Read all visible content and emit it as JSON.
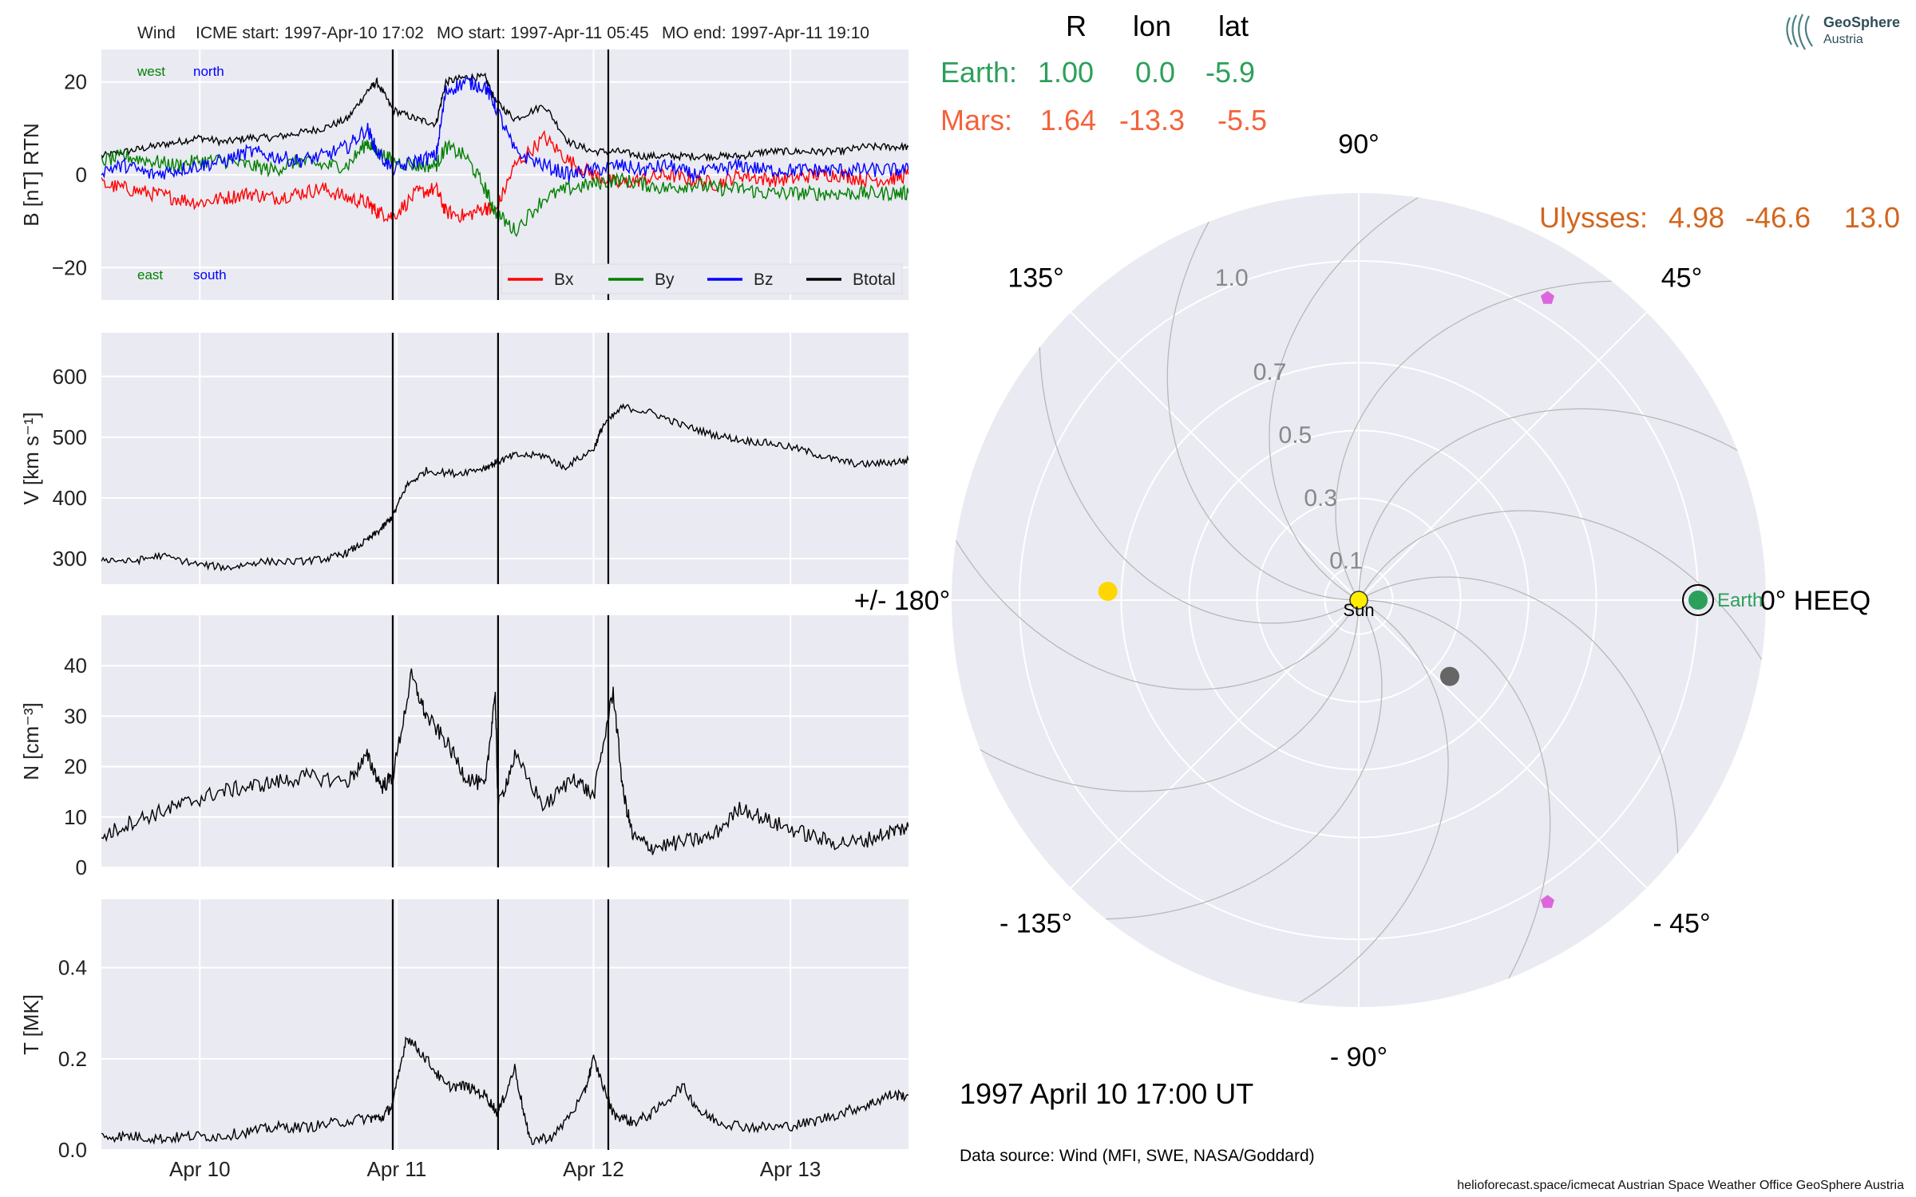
{
  "title": {
    "spacecraft": "Wind",
    "icme_start": "ICME start: 1997-Apr-10 17:02",
    "mo_start": "MO start: 1997-Apr-11 05:45",
    "mo_end": "MO end: 1997-Apr-11 19:10"
  },
  "logo": {
    "name": "GeoSphere",
    "sub": "Austria"
  },
  "positions": {
    "headers": [
      "R",
      "lon",
      "lat"
    ],
    "rows": [
      {
        "name": "Earth:",
        "R": "1.00",
        "lon": "0.0",
        "lat": "-5.9",
        "color": "#2ca05a"
      },
      {
        "name": "Mars:",
        "R": "1.64",
        "lon": "-13.3",
        "lat": "-5.5",
        "color": "#f4623a"
      },
      {
        "name": "Ulysses:",
        "R": "4.98",
        "lon": "-46.6",
        "lat": "13.0",
        "color": "#d2661e"
      }
    ]
  },
  "date_label": "1997 April 10  17:00 UT",
  "data_source": "Data source: Wind (MFI, SWE, NASA/Goddard)",
  "footer": "helioforecast.space/icmecat   Austrian Space Weather Office   GeoSphere Austria",
  "chart_data": [
    {
      "type": "line",
      "panel": "B",
      "ylabel": "B [nT] RTN",
      "ylim": [
        -27,
        27
      ],
      "yticks": [
        20,
        0,
        -20
      ],
      "ytick_labels": [
        "20",
        "0",
        "−20"
      ],
      "corner_labels": {
        "west": "west",
        "north": "north",
        "east": "east",
        "south": "south"
      },
      "legend": [
        "Bx",
        "By",
        "Bz",
        "Btotal"
      ],
      "colors": {
        "Bx": "#ff0000",
        "By": "#008000",
        "Bz": "#0000ff",
        "Btotal": "#000000"
      },
      "x": [
        0,
        0.25,
        0.5,
        0.75,
        1.0,
        1.25,
        1.5,
        1.75,
        2.0,
        2.25,
        2.5,
        2.7,
        2.8,
        2.96,
        3.2,
        3.4,
        3.5,
        3.7,
        3.9,
        4.0,
        4.2,
        4.5,
        4.75,
        5.0,
        5.25,
        5.5,
        5.75,
        6.0,
        6.25,
        6.5,
        6.75,
        7.0,
        7.25,
        7.5,
        7.75,
        8.0,
        8.2
      ],
      "series": [
        {
          "name": "Btotal",
          "values": [
            4,
            5,
            6,
            7,
            8,
            7,
            8,
            8,
            9,
            10,
            12,
            18,
            20,
            14,
            12,
            11,
            20,
            21,
            21,
            16,
            12,
            15,
            7,
            5,
            5,
            4,
            4,
            4,
            4,
            4,
            5,
            5,
            5,
            5,
            6,
            6,
            6
          ]
        },
        {
          "name": "Bx",
          "values": [
            -2,
            -3,
            -4,
            -5,
            -6,
            -5,
            -4,
            -5,
            -4,
            -3,
            -5,
            -6,
            -8,
            -9,
            -4,
            -3,
            -8,
            -9,
            -7,
            -8,
            2,
            8,
            3,
            0,
            -2,
            -1,
            0,
            -1,
            -2,
            0,
            -1,
            -1,
            0,
            0,
            -1,
            -1,
            0
          ]
        },
        {
          "name": "By",
          "values": [
            3,
            4,
            3,
            2,
            3,
            3,
            2,
            1,
            3,
            2,
            2,
            7,
            5,
            3,
            2,
            2,
            6,
            4,
            -3,
            -8,
            -12,
            -5,
            -3,
            -2,
            -1,
            -2,
            -3,
            -2,
            -3,
            -3,
            -4,
            -4,
            -4,
            -4,
            -4,
            -4,
            -4
          ]
        },
        {
          "name": "Bz",
          "values": [
            1,
            2,
            0,
            1,
            2,
            3,
            5,
            4,
            3,
            4,
            6,
            10,
            5,
            1,
            3,
            4,
            18,
            20,
            19,
            15,
            5,
            2,
            0,
            1,
            2,
            1,
            2,
            0,
            1,
            2,
            1,
            1,
            1,
            1,
            1,
            1,
            1
          ]
        }
      ]
    },
    {
      "type": "line",
      "panel": "V",
      "ylabel": "V [km s⁻¹]",
      "ylim": [
        258,
        672
      ],
      "yticks": [
        600,
        500,
        400,
        300
      ],
      "x": [
        0,
        0.3,
        0.6,
        1.0,
        1.3,
        1.6,
        2.0,
        2.3,
        2.5,
        2.7,
        2.85,
        2.96,
        3.1,
        3.3,
        3.6,
        3.9,
        4.03,
        4.2,
        4.5,
        4.7,
        5.0,
        5.1,
        5.3,
        5.6,
        5.9,
        6.2,
        6.5,
        6.8,
        7.1,
        7.4,
        7.7,
        8.0,
        8.2
      ],
      "series": [
        {
          "name": "V",
          "values": [
            300,
            295,
            305,
            290,
            285,
            295,
            295,
            300,
            310,
            330,
            350,
            370,
            420,
            445,
            440,
            450,
            460,
            470,
            470,
            450,
            480,
            520,
            550,
            540,
            520,
            505,
            495,
            490,
            480,
            465,
            455,
            458,
            462
          ]
        }
      ]
    },
    {
      "type": "line",
      "panel": "N",
      "ylabel": "N [cm⁻³]",
      "ylim": [
        0,
        50
      ],
      "yticks": [
        40,
        30,
        20,
        10,
        0
      ],
      "x": [
        0,
        0.3,
        0.6,
        0.9,
        1.2,
        1.5,
        1.8,
        2.1,
        2.5,
        2.7,
        2.85,
        2.96,
        3.15,
        3.3,
        3.5,
        3.7,
        3.9,
        4.0,
        4.03,
        4.2,
        4.5,
        4.8,
        5.0,
        5.2,
        5.3,
        5.4,
        5.6,
        5.9,
        6.2,
        6.5,
        6.8,
        7.1,
        7.4,
        7.7,
        8.0,
        8.2
      ],
      "series": [
        {
          "name": "N",
          "values": [
            6,
            9,
            11,
            13,
            15,
            16,
            17,
            18,
            17,
            22,
            16,
            18,
            38,
            30,
            25,
            18,
            16,
            35,
            12,
            22,
            12,
            18,
            14,
            35,
            15,
            6,
            4,
            5,
            6,
            12,
            9,
            7,
            5,
            5,
            7,
            8
          ]
        }
      ]
    },
    {
      "type": "line",
      "panel": "T",
      "ylabel": "T [MK]",
      "ylim": [
        0,
        0.55
      ],
      "yticks": [
        0.4,
        0.2,
        0.0
      ],
      "ytick_labels": [
        "0.4",
        "0.2",
        "0.0"
      ],
      "xtick_positions": [
        1,
        3,
        5,
        7
      ],
      "xtick_labels": [
        "Apr 10",
        "Apr 11",
        "Apr 12",
        "Apr 13"
      ],
      "x": [
        0,
        0.3,
        0.6,
        0.9,
        1.2,
        1.5,
        1.8,
        2.1,
        2.4,
        2.7,
        2.85,
        2.96,
        3.1,
        3.3,
        3.5,
        3.7,
        3.9,
        4.03,
        4.2,
        4.35,
        4.6,
        4.9,
        5.0,
        5.2,
        5.4,
        5.6,
        5.9,
        6.1,
        6.3,
        6.6,
        6.9,
        7.2,
        7.5,
        7.8,
        8.0,
        8.2
      ],
      "series": [
        {
          "name": "T",
          "values": [
            0.03,
            0.03,
            0.025,
            0.03,
            0.03,
            0.04,
            0.05,
            0.05,
            0.06,
            0.07,
            0.07,
            0.1,
            0.25,
            0.2,
            0.14,
            0.14,
            0.12,
            0.08,
            0.18,
            0.02,
            0.03,
            0.12,
            0.2,
            0.08,
            0.06,
            0.08,
            0.14,
            0.08,
            0.06,
            0.05,
            0.05,
            0.06,
            0.08,
            0.1,
            0.12,
            0.12
          ]
        }
      ]
    },
    {
      "type": "scatter",
      "panel": "polar",
      "projection": "polar",
      "theta_labels": [
        {
          "deg": 0,
          "text": "0° HEEQ"
        },
        {
          "deg": 45,
          "text": "45°"
        },
        {
          "deg": 90,
          "text": "90°"
        },
        {
          "deg": 135,
          "text": "135°"
        },
        {
          "deg": 180,
          "text": "+/- 180°"
        },
        {
          "deg": -135,
          "text": "- 135°"
        },
        {
          "deg": -90,
          "text": "- 90°"
        },
        {
          "deg": -45,
          "text": "- 45°"
        }
      ],
      "r_ticks": [
        0.1,
        0.3,
        0.5,
        0.7,
        1.0
      ],
      "r_tick_labels": [
        "0.1",
        "0.3",
        "0.5",
        "0.7",
        "1.0"
      ],
      "rlim": [
        0,
        1.2
      ],
      "r_label_angle_deg": 112,
      "points": [
        {
          "name": "Sun",
          "label": "Sun",
          "r": 0.0,
          "lon": 0,
          "color": "#ffee00",
          "marker": "circle"
        },
        {
          "name": "Earth",
          "label": "Earth",
          "r": 1.0,
          "lon": 0,
          "color": "#2ca05a",
          "marker": "circle-ring"
        },
        {
          "name": "Mercury",
          "r": 0.74,
          "lon": 178,
          "color": "#ffd700",
          "marker": "circle"
        },
        {
          "name": "Venus",
          "r": 0.35,
          "lon": -40,
          "color": "#666666",
          "marker": "circle"
        },
        {
          "name": "STEREO-A",
          "r": 1.05,
          "lon": 58,
          "color": "#dd66dd",
          "marker": "pentagon"
        },
        {
          "name": "STEREO-B",
          "r": 1.05,
          "lon": -58,
          "color": "#dd66dd",
          "marker": "pentagon"
        }
      ]
    }
  ]
}
